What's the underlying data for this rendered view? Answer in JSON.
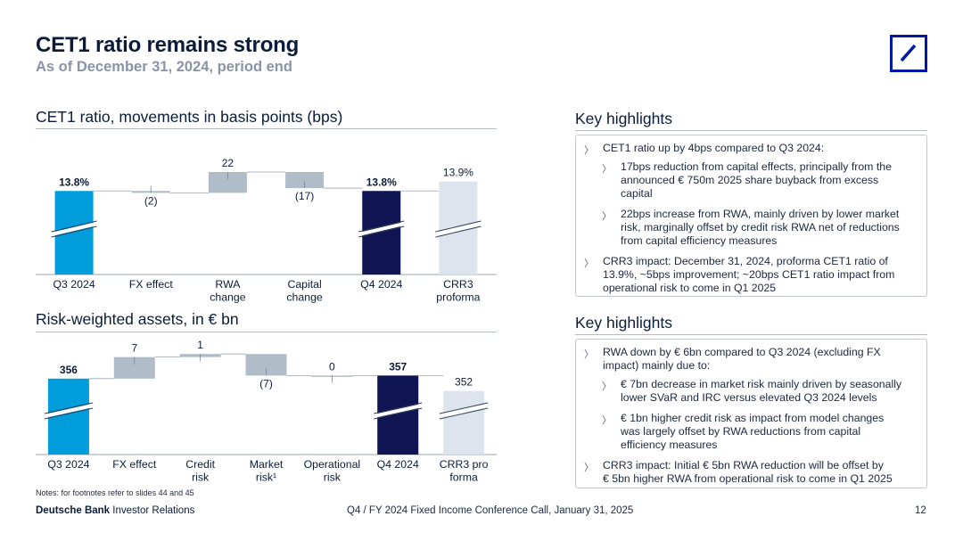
{
  "header": {
    "title": "CET1 ratio remains strong",
    "subtitle": "As of December 31, 2024, period end"
  },
  "colors": {
    "cyan": "#009ddc",
    "navy": "#0f1452",
    "grey": "#b0bcc8",
    "light": "#dde4ee",
    "brand_blue": "#0018a8"
  },
  "cet1_section": {
    "title": "CET1 ratio, movements in basis points (bps)"
  },
  "rwa_section": {
    "title": "Risk-weighted assets, in € bn"
  },
  "chart_data": [
    {
      "type": "bar",
      "subtype": "waterfall",
      "title": "CET1 ratio, movements in basis points (bps)",
      "categories": [
        [
          "Q3 2024"
        ],
        [
          "FX effect"
        ],
        [
          "RWA",
          "change"
        ],
        [
          "Capital",
          "change"
        ],
        [
          "Q4 2024"
        ],
        [
          "CRR3",
          "proforma"
        ]
      ],
      "values": [
        13.8,
        -2,
        22,
        -17,
        13.8,
        13.9
      ],
      "value_labels": [
        "13.8%",
        "(2)",
        "22",
        "(17)",
        "13.8%",
        "13.9%"
      ],
      "bar_kinds": [
        "total",
        "delta",
        "delta",
        "delta",
        "total",
        "pro-forma"
      ],
      "bold_labels": [
        true,
        false,
        false,
        false,
        true,
        false
      ],
      "axis_break": true
    },
    {
      "type": "bar",
      "subtype": "waterfall",
      "title": "Risk-weighted assets, in € bn",
      "categories": [
        [
          "Q3 2024"
        ],
        [
          "FX effect"
        ],
        [
          "Credit",
          "risk"
        ],
        [
          "Market",
          "risk¹"
        ],
        [
          "Operational",
          "risk"
        ],
        [
          "Q4 2024"
        ],
        [
          "CRR3 pro",
          "forma"
        ]
      ],
      "values": [
        356,
        7,
        1,
        -7,
        0,
        357,
        352
      ],
      "value_labels": [
        "356",
        "7",
        "1",
        "(7)",
        "0",
        "357",
        "352"
      ],
      "bar_kinds": [
        "total",
        "delta",
        "delta",
        "delta",
        "delta",
        "total",
        "pro-forma"
      ],
      "bold_labels": [
        true,
        false,
        false,
        false,
        false,
        true,
        false
      ],
      "axis_break": true
    }
  ],
  "highlights_top": {
    "title": "Key highlights",
    "items": [
      {
        "level": 1,
        "lines": [
          "CET1 ratio up by 4bps compared to Q3 2024:"
        ]
      },
      {
        "level": 2,
        "lines": [
          "17bps reduction from capital effects, principally from the",
          "announced € 750m 2025 share buyback from excess",
          "capital"
        ]
      },
      {
        "level": 2,
        "lines": [
          "22bps increase from RWA, mainly driven by lower market",
          "risk, marginally offset by credit risk RWA net of reductions",
          "from capital efficiency measures"
        ]
      },
      {
        "level": 1,
        "lines": [
          "CRR3 impact: December 31, 2024, proforma CET1 ratio of",
          "13.9%, ~5bps improvement; ~20bps CET1 ratio impact from",
          "operational risk to come in Q1 2025"
        ]
      }
    ]
  },
  "highlights_bottom": {
    "title": "Key highlights",
    "items": [
      {
        "level": 1,
        "lines": [
          "RWA down by € 6bn compared to Q3 2024 (excluding FX",
          "impact) mainly due to:"
        ]
      },
      {
        "level": 2,
        "lines": [
          "€ 7bn decrease in market risk mainly driven by seasonally",
          "lower SVaR and IRC versus elevated Q3 2024 levels"
        ]
      },
      {
        "level": 2,
        "lines": [
          "€ 1bn higher credit risk as impact from model changes",
          "was largely offset by RWA reductions from capital",
          "efficiency measures"
        ]
      },
      {
        "level": 1,
        "lines": [
          "CRR3 impact: Initial € 5bn RWA reduction will be offset by",
          "€ 5bn higher RWA from operational risk to come in Q1 2025"
        ]
      }
    ]
  },
  "bullet_glyph": "〉",
  "notes": "Notes: for footnotes refer to slides 44 and 45",
  "footer": {
    "brand_bold": "Deutsche Bank",
    "brand_rest": " Investor Relations",
    "center": "Q4 / FY 2024 Fixed Income Conference Call, January 31, 2025",
    "page": "12"
  }
}
